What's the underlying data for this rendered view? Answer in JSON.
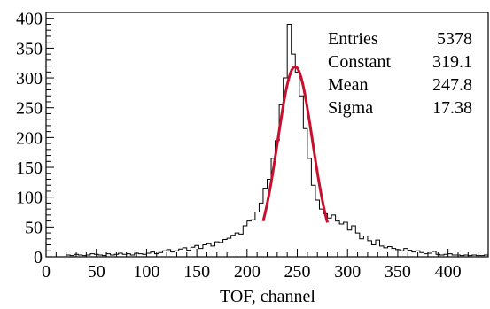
{
  "chart_data": {
    "type": "histogram",
    "xlabel": "TOF, channel",
    "ylabel": "",
    "xlim": [
      0,
      440
    ],
    "ylim": [
      0,
      410
    ],
    "grid": false,
    "x_ticks": [
      0,
      50,
      100,
      150,
      200,
      250,
      300,
      350,
      400
    ],
    "y_ticks": [
      0,
      50,
      100,
      150,
      200,
      250,
      300,
      350,
      400
    ],
    "bin_width": 4,
    "bin_start": 0,
    "bin_counts": [
      0,
      0,
      0,
      0,
      0,
      3,
      2,
      4,
      3,
      2,
      3,
      5,
      4,
      3,
      2,
      5,
      3,
      4,
      6,
      4,
      5,
      3,
      6,
      5,
      4,
      6,
      8,
      5,
      7,
      10,
      12,
      8,
      10,
      13,
      15,
      11,
      16,
      19,
      14,
      20,
      22,
      18,
      25,
      24,
      29,
      31,
      36,
      40,
      38,
      52,
      60,
      62,
      75,
      90,
      115,
      130,
      165,
      195,
      255,
      300,
      390,
      340,
      310,
      270,
      215,
      165,
      120,
      95,
      80,
      72,
      65,
      70,
      60,
      55,
      58,
      45,
      52,
      40,
      30,
      35,
      27,
      20,
      28,
      18,
      15,
      17,
      14,
      12,
      10,
      14,
      11,
      8,
      10,
      7,
      5,
      6,
      9,
      4,
      3,
      4,
      5,
      3,
      3,
      2,
      3,
      2,
      3,
      2,
      2,
      3,
      2
    ],
    "fit": {
      "function": "gaus",
      "color": "#c8102e",
      "x_range": [
        216,
        280
      ],
      "constant": 319.1,
      "mean": 247.8,
      "sigma": 17.38
    },
    "stats_box": {
      "rows": [
        {
          "label": "Entries",
          "value": "5378"
        },
        {
          "label": "Constant",
          "value": "319.1"
        },
        {
          "label": "Mean",
          "value": "247.8"
        },
        {
          "label": "Sigma",
          "value": "17.38"
        }
      ]
    }
  }
}
